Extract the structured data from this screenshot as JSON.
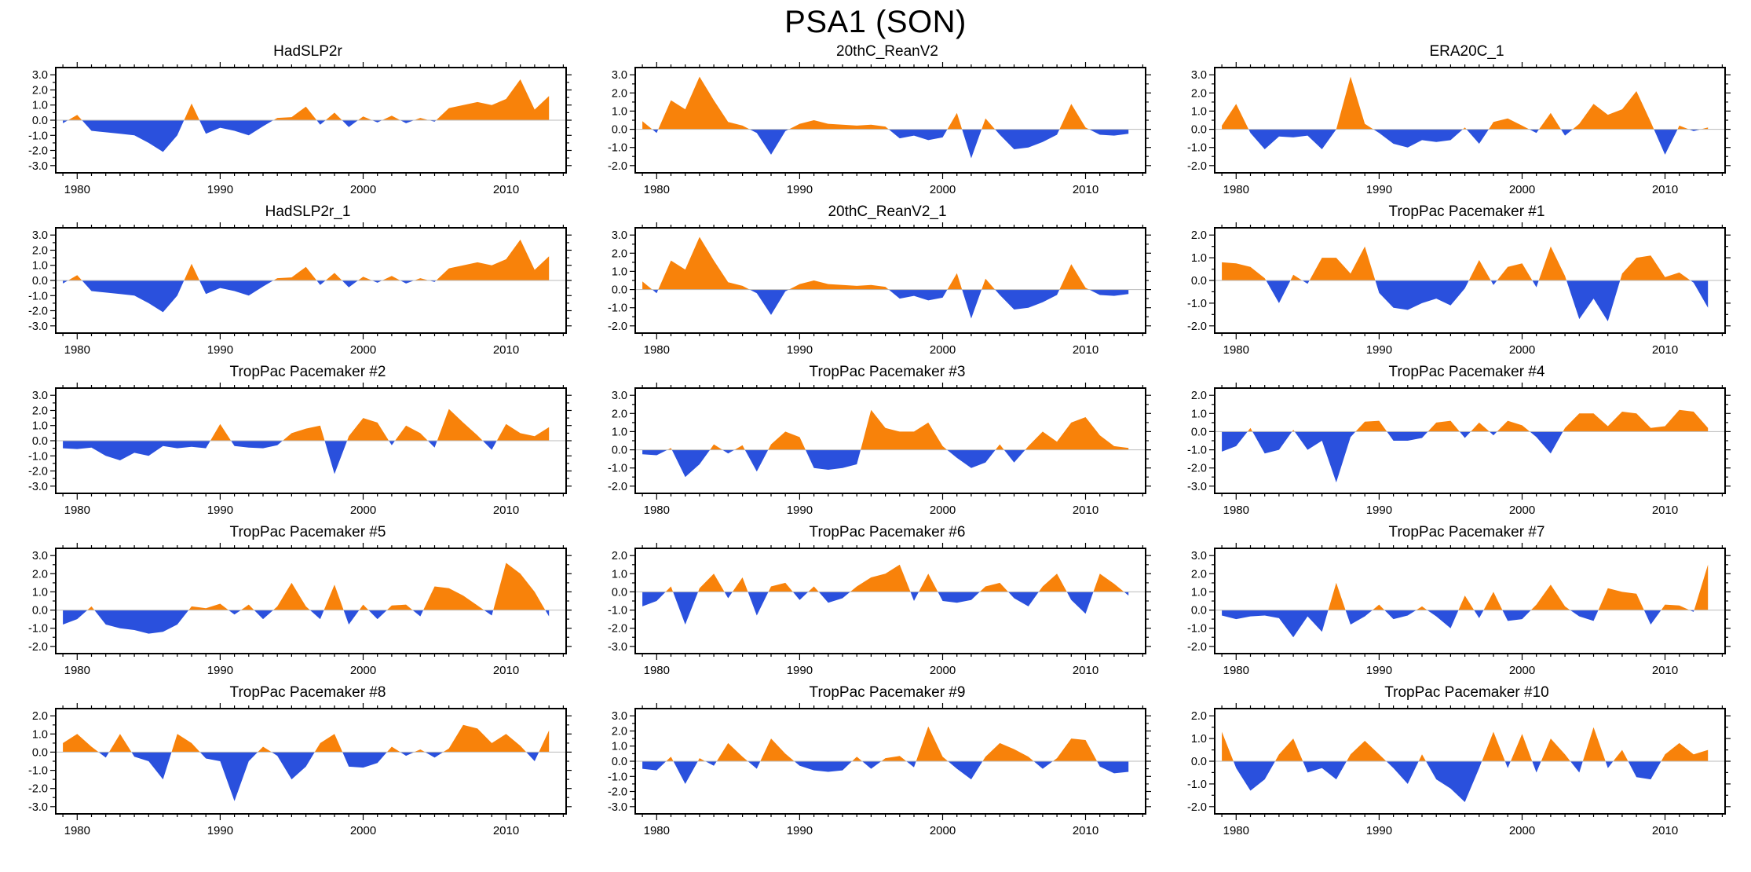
{
  "page_title": "PSA1 (SON)",
  "colors": {
    "positive": "#f8820a",
    "negative": "#2a50dd",
    "zero_line": "#bbbbbb",
    "axis": "#000000"
  },
  "chart_data": [
    {
      "type": "area",
      "title": "HadSLP2r",
      "x_range": [
        1979,
        2013
      ],
      "x_step": 1,
      "xticks": [
        1980,
        1990,
        2000,
        2010
      ],
      "ylim": [
        -3,
        3
      ],
      "yticks": [
        3,
        2,
        1,
        0,
        -1,
        -2,
        -3
      ],
      "values": [
        -0.2,
        0.35,
        -0.7,
        -0.8,
        -0.9,
        -1.0,
        -1.5,
        -2.1,
        -1.0,
        1.1,
        -0.9,
        -0.5,
        -0.7,
        -1.0,
        -0.4,
        0.15,
        0.2,
        0.9,
        -0.3,
        0.5,
        -0.45,
        0.25,
        -0.15,
        0.3,
        -0.2,
        0.15,
        -0.1,
        0.8,
        1.0,
        1.2,
        1.0,
        1.4,
        2.7,
        0.7,
        1.6
      ]
    },
    {
      "type": "area",
      "title": "20thC_ReanV2",
      "x_range": [
        1979,
        2013
      ],
      "x_step": 1,
      "xticks": [
        1980,
        1990,
        2000,
        2010
      ],
      "ylim": [
        -2,
        3
      ],
      "yticks": [
        3,
        2,
        1,
        0,
        -1,
        -2
      ],
      "values": [
        0.45,
        -0.2,
        1.6,
        1.1,
        2.9,
        1.6,
        0.4,
        0.2,
        -0.2,
        -1.4,
        -0.1,
        0.3,
        0.5,
        0.3,
        0.25,
        0.2,
        0.25,
        0.15,
        -0.5,
        -0.35,
        -0.6,
        -0.45,
        0.9,
        -1.6,
        0.6,
        -0.3,
        -1.1,
        -1.0,
        -0.7,
        -0.3,
        1.4,
        0.1,
        -0.3,
        -0.35,
        -0.25
      ]
    },
    {
      "type": "area",
      "title": "ERA20C_1",
      "x_range": [
        1979,
        2013
      ],
      "x_step": 1,
      "xticks": [
        1980,
        1990,
        2000,
        2010
      ],
      "ylim": [
        -2,
        3
      ],
      "yticks": [
        3,
        2,
        1,
        0,
        -1,
        -2
      ],
      "values": [
        0.2,
        1.4,
        -0.2,
        -1.1,
        -0.4,
        -0.45,
        -0.35,
        -1.1,
        0.0,
        2.9,
        0.3,
        -0.2,
        -0.8,
        -1.0,
        -0.6,
        -0.7,
        -0.6,
        0.1,
        -0.8,
        0.4,
        0.6,
        0.2,
        -0.2,
        0.9,
        -0.35,
        0.3,
        1.4,
        0.8,
        1.1,
        2.1,
        0.4,
        -1.4,
        0.2,
        -0.1,
        0.1
      ]
    },
    {
      "type": "area",
      "title": "HadSLP2r_1",
      "x_range": [
        1979,
        2013
      ],
      "x_step": 1,
      "xticks": [
        1980,
        1990,
        2000,
        2010
      ],
      "ylim": [
        -3,
        3
      ],
      "yticks": [
        3,
        2,
        1,
        0,
        -1,
        -2,
        -3
      ],
      "values": [
        -0.2,
        0.35,
        -0.7,
        -0.8,
        -0.9,
        -1.0,
        -1.5,
        -2.1,
        -1.0,
        1.1,
        -0.9,
        -0.5,
        -0.7,
        -1.0,
        -0.4,
        0.15,
        0.2,
        0.9,
        -0.3,
        0.5,
        -0.45,
        0.25,
        -0.15,
        0.3,
        -0.2,
        0.15,
        -0.1,
        0.8,
        1.0,
        1.2,
        1.0,
        1.4,
        2.7,
        0.7,
        1.6
      ]
    },
    {
      "type": "area",
      "title": "20thC_ReanV2_1",
      "x_range": [
        1979,
        2013
      ],
      "x_step": 1,
      "xticks": [
        1980,
        1990,
        2000,
        2010
      ],
      "ylim": [
        -2,
        3
      ],
      "yticks": [
        3,
        2,
        1,
        0,
        -1,
        -2
      ],
      "values": [
        0.45,
        -0.2,
        1.6,
        1.1,
        2.9,
        1.6,
        0.4,
        0.2,
        -0.2,
        -1.4,
        -0.1,
        0.3,
        0.5,
        0.3,
        0.25,
        0.2,
        0.25,
        0.15,
        -0.5,
        -0.35,
        -0.6,
        -0.45,
        0.9,
        -1.6,
        0.6,
        -0.3,
        -1.1,
        -1.0,
        -0.7,
        -0.3,
        1.4,
        0.1,
        -0.3,
        -0.35,
        -0.25
      ]
    },
    {
      "type": "area",
      "title": "TropPac Pacemaker #1",
      "x_range": [
        1979,
        2013
      ],
      "x_step": 1,
      "xticks": [
        1980,
        1990,
        2000,
        2010
      ],
      "ylim": [
        -2,
        2
      ],
      "yticks": [
        2,
        1,
        0,
        -1,
        -2
      ],
      "values": [
        0.8,
        0.75,
        0.6,
        0.1,
        -1.0,
        0.25,
        -0.15,
        1.0,
        1.0,
        0.3,
        1.5,
        -0.55,
        -1.2,
        -1.3,
        -1.0,
        -0.8,
        -1.1,
        -0.35,
        0.9,
        -0.2,
        0.6,
        0.75,
        -0.3,
        1.5,
        0.2,
        -1.7,
        -0.8,
        -1.8,
        0.3,
        1.0,
        1.1,
        0.15,
        0.35,
        -0.1,
        -1.2
      ]
    },
    {
      "type": "area",
      "title": "TropPac Pacemaker #2",
      "x_range": [
        1979,
        2013
      ],
      "x_step": 1,
      "xticks": [
        1980,
        1990,
        2000,
        2010
      ],
      "ylim": [
        -3,
        3
      ],
      "yticks": [
        3,
        2,
        1,
        0,
        -1,
        -2,
        -3
      ],
      "values": [
        -0.5,
        -0.55,
        -0.45,
        -1.0,
        -1.3,
        -0.8,
        -1.0,
        -0.35,
        -0.5,
        -0.4,
        -0.5,
        1.1,
        -0.35,
        -0.45,
        -0.5,
        -0.3,
        0.5,
        0.8,
        1.0,
        -2.2,
        0.3,
        1.5,
        1.2,
        -0.3,
        1.0,
        0.5,
        -0.45,
        2.1,
        1.2,
        0.35,
        -0.6,
        1.1,
        0.5,
        0.3,
        0.9
      ]
    },
    {
      "type": "area",
      "title": "TropPac Pacemaker #3",
      "x_range": [
        1979,
        2013
      ],
      "x_step": 1,
      "xticks": [
        1980,
        1990,
        2000,
        2010
      ],
      "ylim": [
        -2,
        3
      ],
      "yticks": [
        3,
        2,
        1,
        0,
        -1,
        -2
      ],
      "values": [
        -0.25,
        -0.3,
        0.1,
        -1.5,
        -0.8,
        0.3,
        -0.2,
        0.25,
        -1.2,
        0.3,
        1.0,
        0.7,
        -1.0,
        -1.1,
        -1.0,
        -0.8,
        2.2,
        1.2,
        1.0,
        1.0,
        1.5,
        0.2,
        -0.45,
        -1.0,
        -0.7,
        0.3,
        -0.7,
        0.2,
        1.0,
        0.45,
        1.5,
        1.8,
        0.8,
        0.2,
        0.1
      ]
    },
    {
      "type": "area",
      "title": "TropPac Pacemaker #4",
      "x_range": [
        1979,
        2013
      ],
      "x_step": 1,
      "xticks": [
        1980,
        1990,
        2000,
        2010
      ],
      "ylim": [
        -3,
        2
      ],
      "yticks": [
        2,
        1,
        0,
        -1,
        -2,
        -3
      ],
      "values": [
        -1.1,
        -0.8,
        0.2,
        -1.2,
        -1.0,
        0.1,
        -1.0,
        -0.5,
        -2.8,
        -0.3,
        0.55,
        0.6,
        -0.5,
        -0.5,
        -0.35,
        0.5,
        0.6,
        -0.35,
        0.5,
        -0.2,
        0.6,
        0.35,
        -0.3,
        -1.2,
        0.2,
        1.0,
        1.0,
        0.3,
        1.1,
        1.0,
        0.2,
        0.3,
        1.2,
        1.1,
        0.2
      ]
    },
    {
      "type": "area",
      "title": "TropPac Pacemaker #5",
      "x_range": [
        1979,
        2013
      ],
      "x_step": 1,
      "xticks": [
        1980,
        1990,
        2000,
        2010
      ],
      "ylim": [
        -2,
        3
      ],
      "yticks": [
        3,
        2,
        1,
        0,
        -1,
        -2
      ],
      "values": [
        -0.8,
        -0.5,
        0.2,
        -0.8,
        -1.0,
        -1.1,
        -1.3,
        -1.2,
        -0.8,
        0.2,
        0.1,
        0.35,
        -0.25,
        0.3,
        -0.5,
        0.2,
        1.5,
        0.2,
        -0.5,
        1.4,
        -0.8,
        0.3,
        -0.5,
        0.25,
        0.3,
        -0.35,
        1.3,
        1.2,
        0.8,
        0.25,
        -0.3,
        2.6,
        2.0,
        1.0,
        -0.35
      ]
    },
    {
      "type": "area",
      "title": "TropPac Pacemaker #6",
      "x_range": [
        1979,
        2013
      ],
      "x_step": 1,
      "xticks": [
        1980,
        1990,
        2000,
        2010
      ],
      "ylim": [
        -3,
        2
      ],
      "yticks": [
        2,
        1,
        0,
        -1,
        -2,
        -3
      ],
      "values": [
        -0.8,
        -0.5,
        0.3,
        -1.8,
        0.2,
        1.0,
        -0.35,
        0.8,
        -1.3,
        0.3,
        0.5,
        -0.45,
        0.3,
        -0.6,
        -0.35,
        0.3,
        0.8,
        1.0,
        1.5,
        -0.5,
        1.0,
        -0.5,
        -0.6,
        -0.45,
        0.3,
        0.5,
        -0.35,
        -0.8,
        0.3,
        1.0,
        -0.45,
        -1.2,
        1.0,
        0.45,
        -0.2
      ]
    },
    {
      "type": "area",
      "title": "TropPac Pacemaker #7",
      "x_range": [
        1979,
        2013
      ],
      "x_step": 1,
      "xticks": [
        1980,
        1990,
        2000,
        2010
      ],
      "ylim": [
        -2,
        3
      ],
      "yticks": [
        3,
        2,
        1,
        0,
        -1,
        -2
      ],
      "values": [
        -0.3,
        -0.5,
        -0.35,
        -0.3,
        -0.45,
        -1.5,
        -0.35,
        -1.2,
        1.5,
        -0.8,
        -0.35,
        0.3,
        -0.5,
        -0.3,
        0.2,
        -0.35,
        -1.0,
        0.8,
        -0.45,
        1.0,
        -0.6,
        -0.5,
        0.3,
        1.4,
        0.2,
        -0.35,
        -0.6,
        1.2,
        1.0,
        0.9,
        -0.8,
        0.3,
        0.25,
        -0.1,
        2.5
      ]
    },
    {
      "type": "area",
      "title": "TropPac Pacemaker #8",
      "x_range": [
        1979,
        2013
      ],
      "x_step": 1,
      "xticks": [
        1980,
        1990,
        2000,
        2010
      ],
      "ylim": [
        -3,
        2
      ],
      "yticks": [
        2,
        1,
        0,
        -1,
        -2,
        -3
      ],
      "values": [
        0.5,
        1.0,
        0.3,
        -0.3,
        1.0,
        -0.25,
        -0.5,
        -1.5,
        1.0,
        0.5,
        -0.35,
        -0.5,
        -2.7,
        -0.5,
        0.3,
        -0.2,
        -1.5,
        -0.8,
        0.5,
        1.0,
        -0.8,
        -0.85,
        -0.6,
        0.3,
        -0.2,
        0.15,
        -0.3,
        0.2,
        1.5,
        1.3,
        0.5,
        1.0,
        0.35,
        -0.5,
        1.2
      ]
    },
    {
      "type": "area",
      "title": "TropPac Pacemaker #9",
      "x_range": [
        1979,
        2013
      ],
      "x_step": 1,
      "xticks": [
        1980,
        1990,
        2000,
        2010
      ],
      "ylim": [
        -3,
        3
      ],
      "yticks": [
        3,
        2,
        1,
        0,
        -1,
        -2,
        -3
      ],
      "values": [
        -0.5,
        -0.6,
        0.3,
        -1.5,
        0.2,
        -0.3,
        1.2,
        0.3,
        -0.5,
        1.5,
        0.5,
        -0.3,
        -0.6,
        -0.7,
        -0.6,
        0.3,
        -0.5,
        0.2,
        0.35,
        -0.4,
        2.3,
        0.3,
        -0.5,
        -1.2,
        0.3,
        1.2,
        0.8,
        0.3,
        -0.5,
        0.2,
        1.5,
        1.4,
        -0.35,
        -0.8,
        -0.7
      ]
    },
    {
      "type": "area",
      "title": "TropPac Pacemaker #10",
      "x_range": [
        1979,
        2013
      ],
      "x_step": 1,
      "xticks": [
        1980,
        1990,
        2000,
        2010
      ],
      "ylim": [
        -2,
        2
      ],
      "yticks": [
        2,
        1,
        0,
        -1,
        -2
      ],
      "values": [
        1.3,
        -0.3,
        -1.3,
        -0.8,
        0.3,
        1.0,
        -0.5,
        -0.3,
        -0.8,
        0.3,
        0.9,
        0.3,
        -0.3,
        -1.0,
        0.3,
        -0.8,
        -1.2,
        -1.8,
        -0.3,
        1.3,
        -0.3,
        1.2,
        -0.5,
        1.0,
        0.3,
        -0.5,
        1.5,
        -0.3,
        0.5,
        -0.7,
        -0.8,
        0.3,
        0.8,
        0.3,
        0.5
      ]
    }
  ]
}
